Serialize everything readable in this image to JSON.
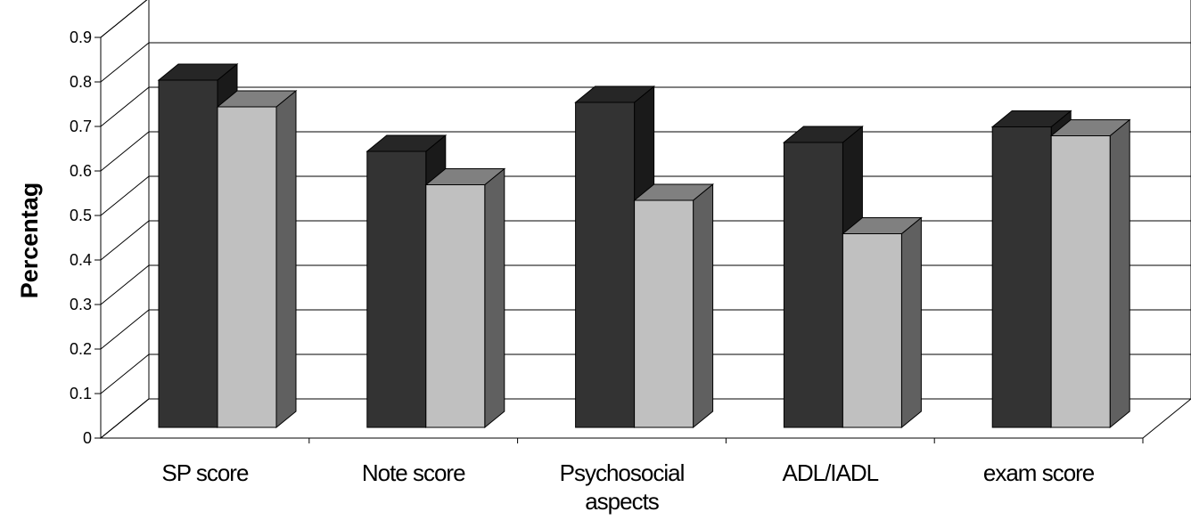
{
  "chart_data": {
    "type": "bar",
    "title": "",
    "xlabel": "",
    "ylabel": "Percentag",
    "ylim": [
      0,
      0.9
    ],
    "yticks": [
      "0",
      "0.1",
      "0.2",
      "0.3",
      "0.4",
      "0.5",
      "0.6",
      "0.7",
      "0.8",
      "0.9"
    ],
    "categories": [
      "SP score",
      "Note score",
      "Psychosocial aspects",
      "ADL/IADL",
      "exam score"
    ],
    "series": [
      {
        "values": [
          0.78,
          0.62,
          0.73,
          0.64,
          0.675
        ]
      },
      {
        "values": [
          0.72,
          0.545,
          0.51,
          0.435,
          0.655
        ]
      }
    ],
    "grid": true,
    "legend": "none",
    "colors": {
      "series0_front": "#333333",
      "series0_top": "#262626",
      "series0_side": "#1a1a1a",
      "series1_front": "#c0c0c0",
      "series1_top": "#808080",
      "series1_side": "#606060",
      "wall": "#ffffff",
      "grid": "#000000"
    }
  }
}
